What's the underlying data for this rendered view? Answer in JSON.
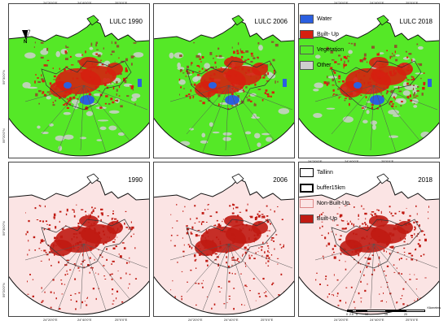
{
  "panels": [
    {
      "id": "lulc-1990",
      "title": "LULC 1990"
    },
    {
      "id": "lulc-2006",
      "title": "LULC 2006"
    },
    {
      "id": "lulc-2018",
      "title": "LULC 2018"
    },
    {
      "id": "bu-1990",
      "title": "1990"
    },
    {
      "id": "bu-2006",
      "title": "2006"
    },
    {
      "id": "bu-2018",
      "title": "2018"
    }
  ],
  "north_arrow": "N",
  "ticks_top": [
    "24°20'0\"E",
    "24°40'0\"E",
    "25°0'0\"E"
  ],
  "ticks_bottom": [
    "24°20'0\"E",
    "24°40'0\"E",
    "25°0'0\"E"
  ],
  "ticks_left": [
    "59°30'0\"N",
    "59°20'0\"N"
  ],
  "legend_lulc": [
    {
      "label": "Water",
      "color": "#2b5fe0"
    },
    {
      "label": "Built- Up",
      "color": "#d61f0f"
    },
    {
      "label": "Vegetation",
      "color": "#55e827"
    },
    {
      "label": "Other",
      "color": "#cfcfcf"
    }
  ],
  "legend_builtup": [
    {
      "label": "Tallinn",
      "color": "#ffffff"
    },
    {
      "label": "buffer15km",
      "color": "#ffffff"
    },
    {
      "label": "Non-Built-Up",
      "color": "#fbe4e4"
    },
    {
      "label": "Built-Up",
      "color": "#c01a12"
    }
  ],
  "scale_bar": {
    "labels": [
      "0",
      "2.5",
      "5",
      "10",
      "15",
      "20"
    ],
    "unit": "Kilometers"
  }
}
